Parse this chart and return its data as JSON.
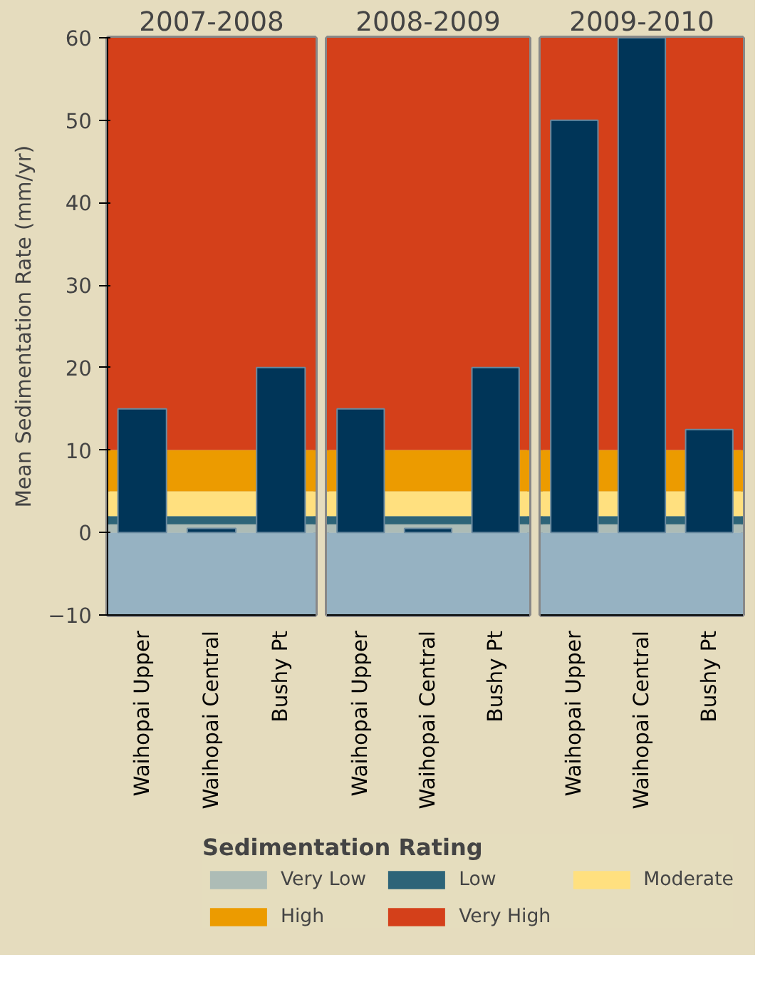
{
  "chart_data": [
    {
      "type": "bar",
      "title": "2007-2008",
      "ylabel": "Mean Sedimentation Rate (mm/yr)",
      "categories": [
        "Waihopai Upper",
        "Waihopai Central",
        "Bushy Pt"
      ],
      "values": [
        15,
        0.5,
        20
      ],
      "color": "#003558",
      "ylim": [
        -10,
        60
      ],
      "yticks": [
        -10,
        0,
        10,
        20,
        30,
        40,
        50,
        60
      ],
      "grid": false,
      "legend": "bottom",
      "legend_title": "Sedimentation Rating",
      "bands": [
        {
          "axis": "y",
          "from": -10,
          "to": 0,
          "color": "#96b2c2"
        },
        {
          "axis": "y",
          "from": 0,
          "to": 1,
          "label": "Very Low",
          "color": "#adbcb6"
        },
        {
          "axis": "y",
          "from": 1,
          "to": 2,
          "label": "Low",
          "color": "#2d6478"
        },
        {
          "axis": "y",
          "from": 2,
          "to": 5,
          "label": "Moderate",
          "color": "#ffe07f"
        },
        {
          "axis": "y",
          "from": 5,
          "to": 10,
          "label": "High",
          "color": "#ec9b00"
        },
        {
          "axis": "y",
          "from": 10,
          "to": 60,
          "label": "Very High",
          "color": "#d4401a"
        }
      ]
    },
    {
      "type": "bar",
      "title": "2008-2009",
      "categories": [
        "Waihopai Upper",
        "Waihopai Central",
        "Bushy Pt"
      ],
      "values": [
        15,
        0.5,
        20
      ],
      "color": "#003558",
      "ylim": [
        -10,
        60
      ],
      "grid": false,
      "tick_labels": "x",
      "bands": [
        {
          "axis": "y",
          "from": -10,
          "to": 0,
          "color": "#96b2c2"
        },
        {
          "axis": "y",
          "from": 0,
          "to": 1,
          "color": "#adbcb6"
        },
        {
          "axis": "y",
          "from": 1,
          "to": 2,
          "color": "#2d6478"
        },
        {
          "axis": "y",
          "from": 2,
          "to": 5,
          "color": "#ffe07f"
        },
        {
          "axis": "y",
          "from": 5,
          "to": 10,
          "color": "#ec9b00"
        },
        {
          "axis": "y",
          "from": 10,
          "to": 60,
          "color": "#d4401a"
        }
      ]
    },
    {
      "type": "bar",
      "title": "2009-2010",
      "categories": [
        "Waihopai Upper",
        "Waihopai Central",
        "Bushy Pt"
      ],
      "values": [
        50,
        60,
        12.5
      ],
      "color": "#003558",
      "ylim": [
        -10,
        60
      ],
      "grid": false,
      "tick_labels": "x",
      "bands": [
        {
          "axis": "y",
          "from": -10,
          "to": 0,
          "color": "#96b2c2"
        },
        {
          "axis": "y",
          "from": 0,
          "to": 1,
          "color": "#adbcb6"
        },
        {
          "axis": "y",
          "from": 1,
          "to": 2,
          "color": "#2d6478"
        },
        {
          "axis": "y",
          "from": 2,
          "to": 5,
          "color": "#ffe07f"
        },
        {
          "axis": "y",
          "from": 5,
          "to": 10,
          "color": "#ec9b00"
        },
        {
          "axis": "y",
          "from": 10,
          "to": 60,
          "color": "#d4401a"
        }
      ]
    }
  ]
}
